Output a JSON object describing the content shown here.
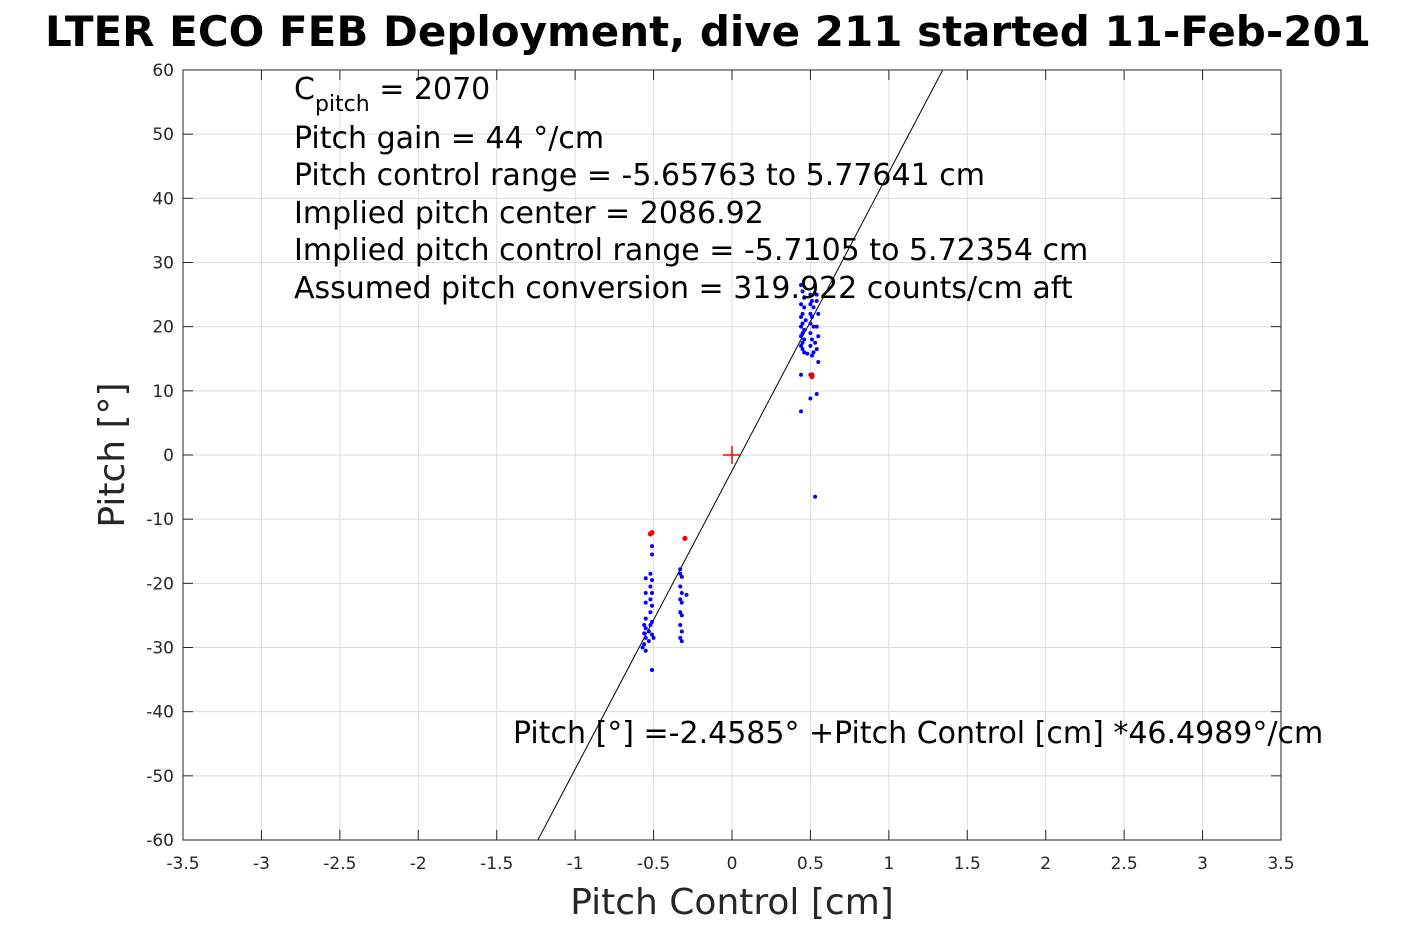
{
  "chart_data": {
    "type": "scatter",
    "title": "LTER ECO FEB Deployment, dive 211 started 11-Feb-201",
    "xlabel": "Pitch Control [cm]",
    "ylabel": "Pitch [°]",
    "xlim": [
      -3.5,
      3.5
    ],
    "ylim": [
      -60,
      60
    ],
    "xticks": [
      -3.5,
      -3,
      -2.5,
      -2,
      -1.5,
      -1,
      -0.5,
      0,
      0.5,
      1,
      1.5,
      2,
      2.5,
      3,
      3.5
    ],
    "xtick_labels": [
      "-3.5",
      "-3",
      "-2.5",
      "-2",
      "-1.5",
      "-1",
      "-0.5",
      "0",
      "0.5",
      "1",
      "1.5",
      "2",
      "2.5",
      "3",
      "3.5"
    ],
    "yticks": [
      -60,
      -50,
      -40,
      -30,
      -20,
      -10,
      0,
      10,
      20,
      30,
      40,
      50,
      60
    ],
    "ytick_labels": [
      "-60",
      "-50",
      "-40",
      "-30",
      "-20",
      "-10",
      "0",
      "10",
      "20",
      "30",
      "40",
      "50",
      "60"
    ],
    "grid": true,
    "colors": {
      "blue_points": "#0000ff",
      "red_points": "#ff0000",
      "fit_line": "#000000",
      "center_marker": "#ff0000"
    },
    "annotations": {
      "c_pitch_main": "C",
      "c_pitch_sub": "pitch",
      "c_pitch_value": " = 2070",
      "pitch_gain": "Pitch gain = 44 °/cm",
      "control_range": "Pitch control range = -5.65763 to 5.77641 cm",
      "implied_center": "Implied pitch center = 2086.92",
      "implied_range": "Implied pitch control range = -5.7105 to 5.72354 cm",
      "conversion": "Assumed pitch conversion = 319.922 counts/cm aft",
      "fit_equation": "Pitch [°] =-2.4585° +Pitch Control [cm] *46.4989°/cm"
    },
    "fit_line": {
      "intercept": -2.4585,
      "slope": 46.4989
    },
    "center_marker": {
      "x": 0,
      "y": 0
    },
    "series": [
      {
        "color": "#0000ff",
        "points": [
          [
            0.44,
            26.5
          ],
          [
            0.45,
            25.5
          ],
          [
            0.46,
            24.5
          ],
          [
            0.44,
            23.5
          ],
          [
            0.46,
            23
          ],
          [
            0.45,
            22
          ],
          [
            0.44,
            21.5
          ],
          [
            0.47,
            21
          ],
          [
            0.45,
            20.5
          ],
          [
            0.44,
            20
          ],
          [
            0.46,
            19.5
          ],
          [
            0.45,
            19
          ],
          [
            0.44,
            18.5
          ],
          [
            0.46,
            18
          ],
          [
            0.45,
            17.5
          ],
          [
            0.44,
            17
          ],
          [
            0.46,
            16
          ],
          [
            0.45,
            16.5
          ],
          [
            0.48,
            15.8
          ],
          [
            0.5,
            25
          ],
          [
            0.51,
            24
          ],
          [
            0.5,
            23.5
          ],
          [
            0.52,
            23
          ],
          [
            0.5,
            22
          ],
          [
            0.51,
            21.5
          ],
          [
            0.5,
            20.5
          ],
          [
            0.52,
            20
          ],
          [
            0.5,
            19
          ],
          [
            0.51,
            18
          ],
          [
            0.53,
            17.5
          ],
          [
            0.5,
            17
          ],
          [
            0.52,
            16
          ],
          [
            0.51,
            15.5
          ],
          [
            0.54,
            25
          ],
          [
            0.54,
            24
          ],
          [
            0.55,
            22
          ],
          [
            0.54,
            20
          ],
          [
            0.55,
            18.5
          ],
          [
            0.54,
            16.5
          ],
          [
            0.55,
            14.5
          ],
          [
            0.44,
            12.5
          ],
          [
            0.5,
            12.5
          ],
          [
            0.54,
            9.5
          ],
          [
            0.5,
            8.8
          ],
          [
            0.44,
            6.8
          ],
          [
            0.53,
            -6.5
          ],
          [
            -0.51,
            -14.2
          ],
          [
            -0.51,
            -15.5
          ],
          [
            -0.52,
            -18.5
          ],
          [
            -0.51,
            -19.5
          ],
          [
            -0.55,
            -19.2
          ],
          [
            -0.52,
            -20.5
          ],
          [
            -0.51,
            -21.5
          ],
          [
            -0.55,
            -21.5
          ],
          [
            -0.52,
            -22.5
          ],
          [
            -0.55,
            -23
          ],
          [
            -0.51,
            -23.5
          ],
          [
            -0.52,
            -24.5
          ],
          [
            -0.55,
            -25.5
          ],
          [
            -0.51,
            -26
          ],
          [
            -0.56,
            -26.5
          ],
          [
            -0.55,
            -27
          ],
          [
            -0.53,
            -27.5
          ],
          [
            -0.56,
            -27.8
          ],
          [
            -0.51,
            -28
          ],
          [
            -0.55,
            -28.5
          ],
          [
            -0.53,
            -29
          ],
          [
            -0.56,
            -29.5
          ],
          [
            -0.55,
            -30.5
          ],
          [
            -0.57,
            -30
          ],
          [
            -0.52,
            -26.5
          ],
          [
            -0.5,
            -28.5
          ],
          [
            -0.51,
            -33.5
          ],
          [
            -0.33,
            -17.8
          ],
          [
            -0.33,
            -18.5
          ],
          [
            -0.32,
            -19
          ],
          [
            -0.33,
            -20.5
          ],
          [
            -0.32,
            -21.5
          ],
          [
            -0.29,
            -21.8
          ],
          [
            -0.33,
            -22.5
          ],
          [
            -0.32,
            -23
          ],
          [
            -0.33,
            -24.5
          ],
          [
            -0.32,
            -25
          ],
          [
            -0.33,
            -26.5
          ],
          [
            -0.32,
            -27.5
          ],
          [
            -0.33,
            -28.5
          ],
          [
            -0.32,
            -29
          ]
        ]
      },
      {
        "color": "#ff0000",
        "points": [
          [
            0.51,
            12.2
          ],
          [
            0.51,
            12.5
          ],
          [
            -0.51,
            -12.1
          ],
          [
            -0.52,
            -12.3
          ],
          [
            -0.3,
            -13
          ]
        ]
      }
    ]
  }
}
